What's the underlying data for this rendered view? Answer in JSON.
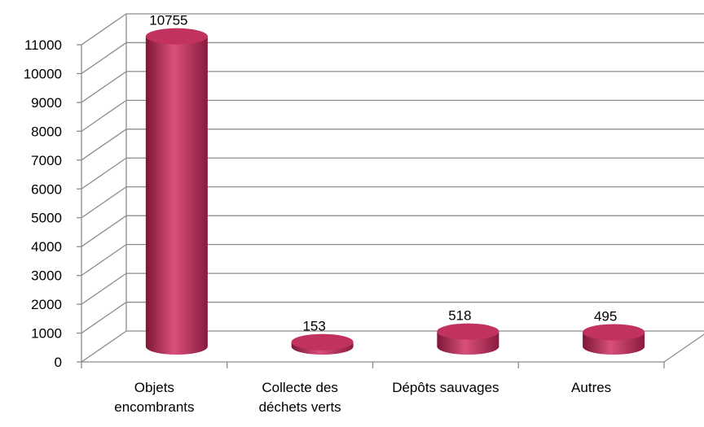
{
  "chart_data": {
    "type": "bar3d",
    "categories": [
      "Objets encombrants",
      "Collecte des déchets verts",
      "Dépôts sauvages",
      "Autres"
    ],
    "values": [
      10755,
      153,
      518,
      495
    ],
    "color": "#c2325e",
    "ylim": [
      0,
      11000
    ],
    "yticks": [
      0,
      1000,
      2000,
      3000,
      4000,
      5000,
      6000,
      7000,
      8000,
      9000,
      10000,
      11000
    ],
    "grid": true
  }
}
